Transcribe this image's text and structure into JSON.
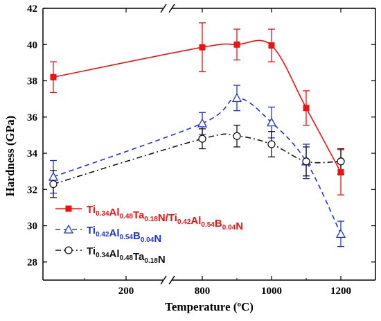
{
  "chart_data": {
    "type": "line",
    "xlabel": "Temperature (",
    "xlabel_sup": "o",
    "xlabel_end": "C)",
    "ylabel": "Hardness (GPa)",
    "ylim": [
      27,
      42
    ],
    "y_ticks": [
      28,
      30,
      32,
      34,
      36,
      38,
      40,
      42
    ],
    "x_segment_1": {
      "range": [
        0,
        300
      ],
      "ticks": [
        200
      ]
    },
    "x_segment_2": {
      "range": [
        700,
        1300
      ],
      "ticks": [
        800,
        1000,
        1200
      ]
    },
    "axis_break": true,
    "legend_position": "bottom-left",
    "series": [
      {
        "legend": {
          "parts": [
            {
              "t": "Ti"
            },
            {
              "t": "0.34",
              "sub": true
            },
            {
              "t": "Al"
            },
            {
              "t": "0.48",
              "sub": true
            },
            {
              "t": "Ta"
            },
            {
              "t": "0.18",
              "sub": true
            },
            {
              "t": "N/Ti"
            },
            {
              "t": "0.42",
              "sub": true
            },
            {
              "t": "Al"
            },
            {
              "t": "0.54",
              "sub": true
            },
            {
              "t": "B"
            },
            {
              "t": "0.04",
              "sub": true
            },
            {
              "t": "N"
            }
          ]
        },
        "color": "#ee1111",
        "marker": "square-filled",
        "line_style": "solid",
        "x": [
          25,
          800,
          900,
          1000,
          1100,
          1200
        ],
        "y": [
          38.2,
          39.85,
          40.0,
          39.95,
          36.5,
          32.95
        ],
        "err": [
          0.85,
          1.35,
          0.85,
          0.9,
          0.95,
          1.25
        ]
      },
      {
        "legend": {
          "parts": [
            {
              "t": "Ti"
            },
            {
              "t": "0.42",
              "sub": true
            },
            {
              "t": "Al"
            },
            {
              "t": "0.54",
              "sub": true
            },
            {
              "t": "B"
            },
            {
              "t": "0.04",
              "sub": true
            },
            {
              "t": "N"
            }
          ]
        },
        "color": "#1a33dd",
        "marker": "triangle-open",
        "line_style": "dashed",
        "x": [
          25,
          800,
          900,
          1000,
          1100,
          1200
        ],
        "y": [
          32.7,
          35.65,
          37.05,
          35.7,
          33.55,
          29.55
        ],
        "err": [
          0.9,
          0.6,
          0.7,
          0.85,
          0.95,
          0.7
        ]
      },
      {
        "legend": {
          "parts": [
            {
              "t": "Ti"
            },
            {
              "t": "0.34",
              "sub": true
            },
            {
              "t": "Al"
            },
            {
              "t": "0.48",
              "sub": true
            },
            {
              "t": "Ta"
            },
            {
              "t": "0.18",
              "sub": true
            },
            {
              "t": "N"
            }
          ]
        },
        "color": "#111111",
        "marker": "circle-open",
        "line_style": "dashdot",
        "x": [
          25,
          800,
          900,
          1000,
          1100,
          1200
        ],
        "y": [
          32.3,
          34.8,
          34.95,
          34.5,
          33.55,
          33.55
        ],
        "err": [
          0.75,
          0.55,
          0.6,
          0.7,
          0.8,
          0.7
        ]
      }
    ]
  }
}
